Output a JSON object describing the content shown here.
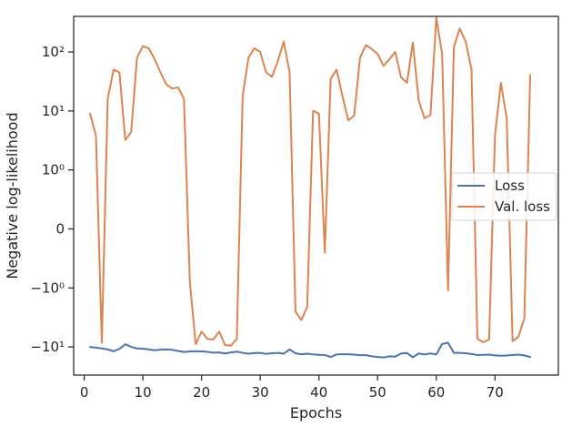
{
  "chart_data": {
    "type": "line",
    "xlabel": "Epochs",
    "ylabel": "Negative log-likelihood",
    "yscale": "symlog",
    "xlim": [
      -1.8,
      80.8
    ],
    "ylim": [
      -30,
      400
    ],
    "x_ticks": [
      0,
      10,
      20,
      30,
      40,
      50,
      60,
      70
    ],
    "x_tick_labels": [
      "0",
      "10",
      "20",
      "30",
      "40",
      "50",
      "60",
      "70"
    ],
    "y_ticks": [
      -10,
      -1,
      0,
      1,
      10,
      100
    ],
    "y_tick_labels": [
      "−10¹",
      "−10⁰",
      "0",
      "10⁰",
      "10¹",
      "10²"
    ],
    "grid": false,
    "legend": "center-right",
    "series": [
      {
        "name": "Loss",
        "color": "#4c72b0",
        "x": [
          1,
          2,
          3,
          4,
          5,
          6,
          7,
          8,
          9,
          10,
          11,
          12,
          13,
          14,
          15,
          16,
          17,
          18,
          19,
          20,
          21,
          22,
          23,
          24,
          25,
          26,
          27,
          28,
          29,
          30,
          31,
          32,
          33,
          34,
          35,
          36,
          37,
          38,
          39,
          40,
          41,
          42,
          43,
          44,
          45,
          46,
          47,
          48,
          49,
          50,
          51,
          52,
          53,
          54,
          55,
          56,
          57,
          58,
          59,
          60,
          61,
          62,
          63,
          64,
          65,
          66,
          67,
          68,
          69,
          70,
          71,
          72,
          73,
          74,
          75,
          76
        ],
        "y": [
          -10.0,
          -10.3,
          -10.6,
          -11.0,
          -11.8,
          -10.8,
          -9.0,
          -10.0,
          -10.6,
          -10.7,
          -11.0,
          -11.4,
          -11.1,
          -11.0,
          -11.2,
          -11.7,
          -12.2,
          -11.9,
          -11.8,
          -11.9,
          -12.1,
          -12.5,
          -12.4,
          -12.9,
          -12.4,
          -12.0,
          -12.6,
          -13.0,
          -12.7,
          -12.6,
          -13.1,
          -12.8,
          -12.6,
          -13.0,
          -11.0,
          -12.8,
          -13.3,
          -13.0,
          -13.4,
          -13.6,
          -13.7,
          -14.8,
          -13.4,
          -13.3,
          -13.3,
          -13.5,
          -13.8,
          -13.8,
          -14.4,
          -14.8,
          -15.1,
          -14.4,
          -14.6,
          -12.9,
          -12.7,
          -15.0,
          -12.9,
          -13.4,
          -12.9,
          -13.4,
          -8.9,
          -8.5,
          -12.6,
          -12.6,
          -12.8,
          -13.2,
          -13.7,
          -13.6,
          -13.5,
          -13.9,
          -14.1,
          -14.0,
          -13.7,
          -13.5,
          -13.9,
          -14.8
        ]
      },
      {
        "name": "Val. loss",
        "color": "#dd8452",
        "x": [
          1,
          2,
          3,
          4,
          5,
          6,
          7,
          8,
          9,
          10,
          11,
          12,
          13,
          14,
          15,
          16,
          17,
          18,
          19,
          20,
          21,
          22,
          23,
          24,
          25,
          26,
          27,
          28,
          29,
          30,
          31,
          32,
          33,
          34,
          35,
          36,
          37,
          38,
          39,
          40,
          41,
          42,
          43,
          44,
          45,
          46,
          47,
          48,
          49,
          50,
          51,
          52,
          53,
          54,
          55,
          56,
          57,
          58,
          59,
          60,
          61,
          62,
          63,
          64,
          65,
          66,
          67,
          68,
          69,
          70,
          71,
          72,
          73,
          74,
          75,
          76
        ],
        "y": [
          9,
          3.8,
          -8.5,
          16,
          50,
          45,
          3.2,
          4.4,
          80,
          125,
          115,
          75,
          45,
          28,
          24,
          25,
          16,
          -0.9,
          -9.0,
          -5.5,
          -7.3,
          -7.5,
          -5.5,
          -9.3,
          -9.5,
          -7.3,
          18,
          80,
          115,
          100,
          45,
          38,
          70,
          150,
          45,
          -2.5,
          -3.5,
          -2.1,
          10,
          9,
          -0.4,
          35,
          50,
          18,
          6.9,
          8.3,
          80,
          130,
          112,
          92,
          58,
          75,
          100,
          37,
          30,
          145,
          15,
          7.5,
          8.5,
          380,
          90,
          -1.1,
          120,
          250,
          150,
          50,
          -7.3,
          -8.3,
          -7.5,
          3.8,
          30,
          7.5,
          -8.0,
          -6.7,
          -3.3,
          40
        ]
      }
    ]
  }
}
